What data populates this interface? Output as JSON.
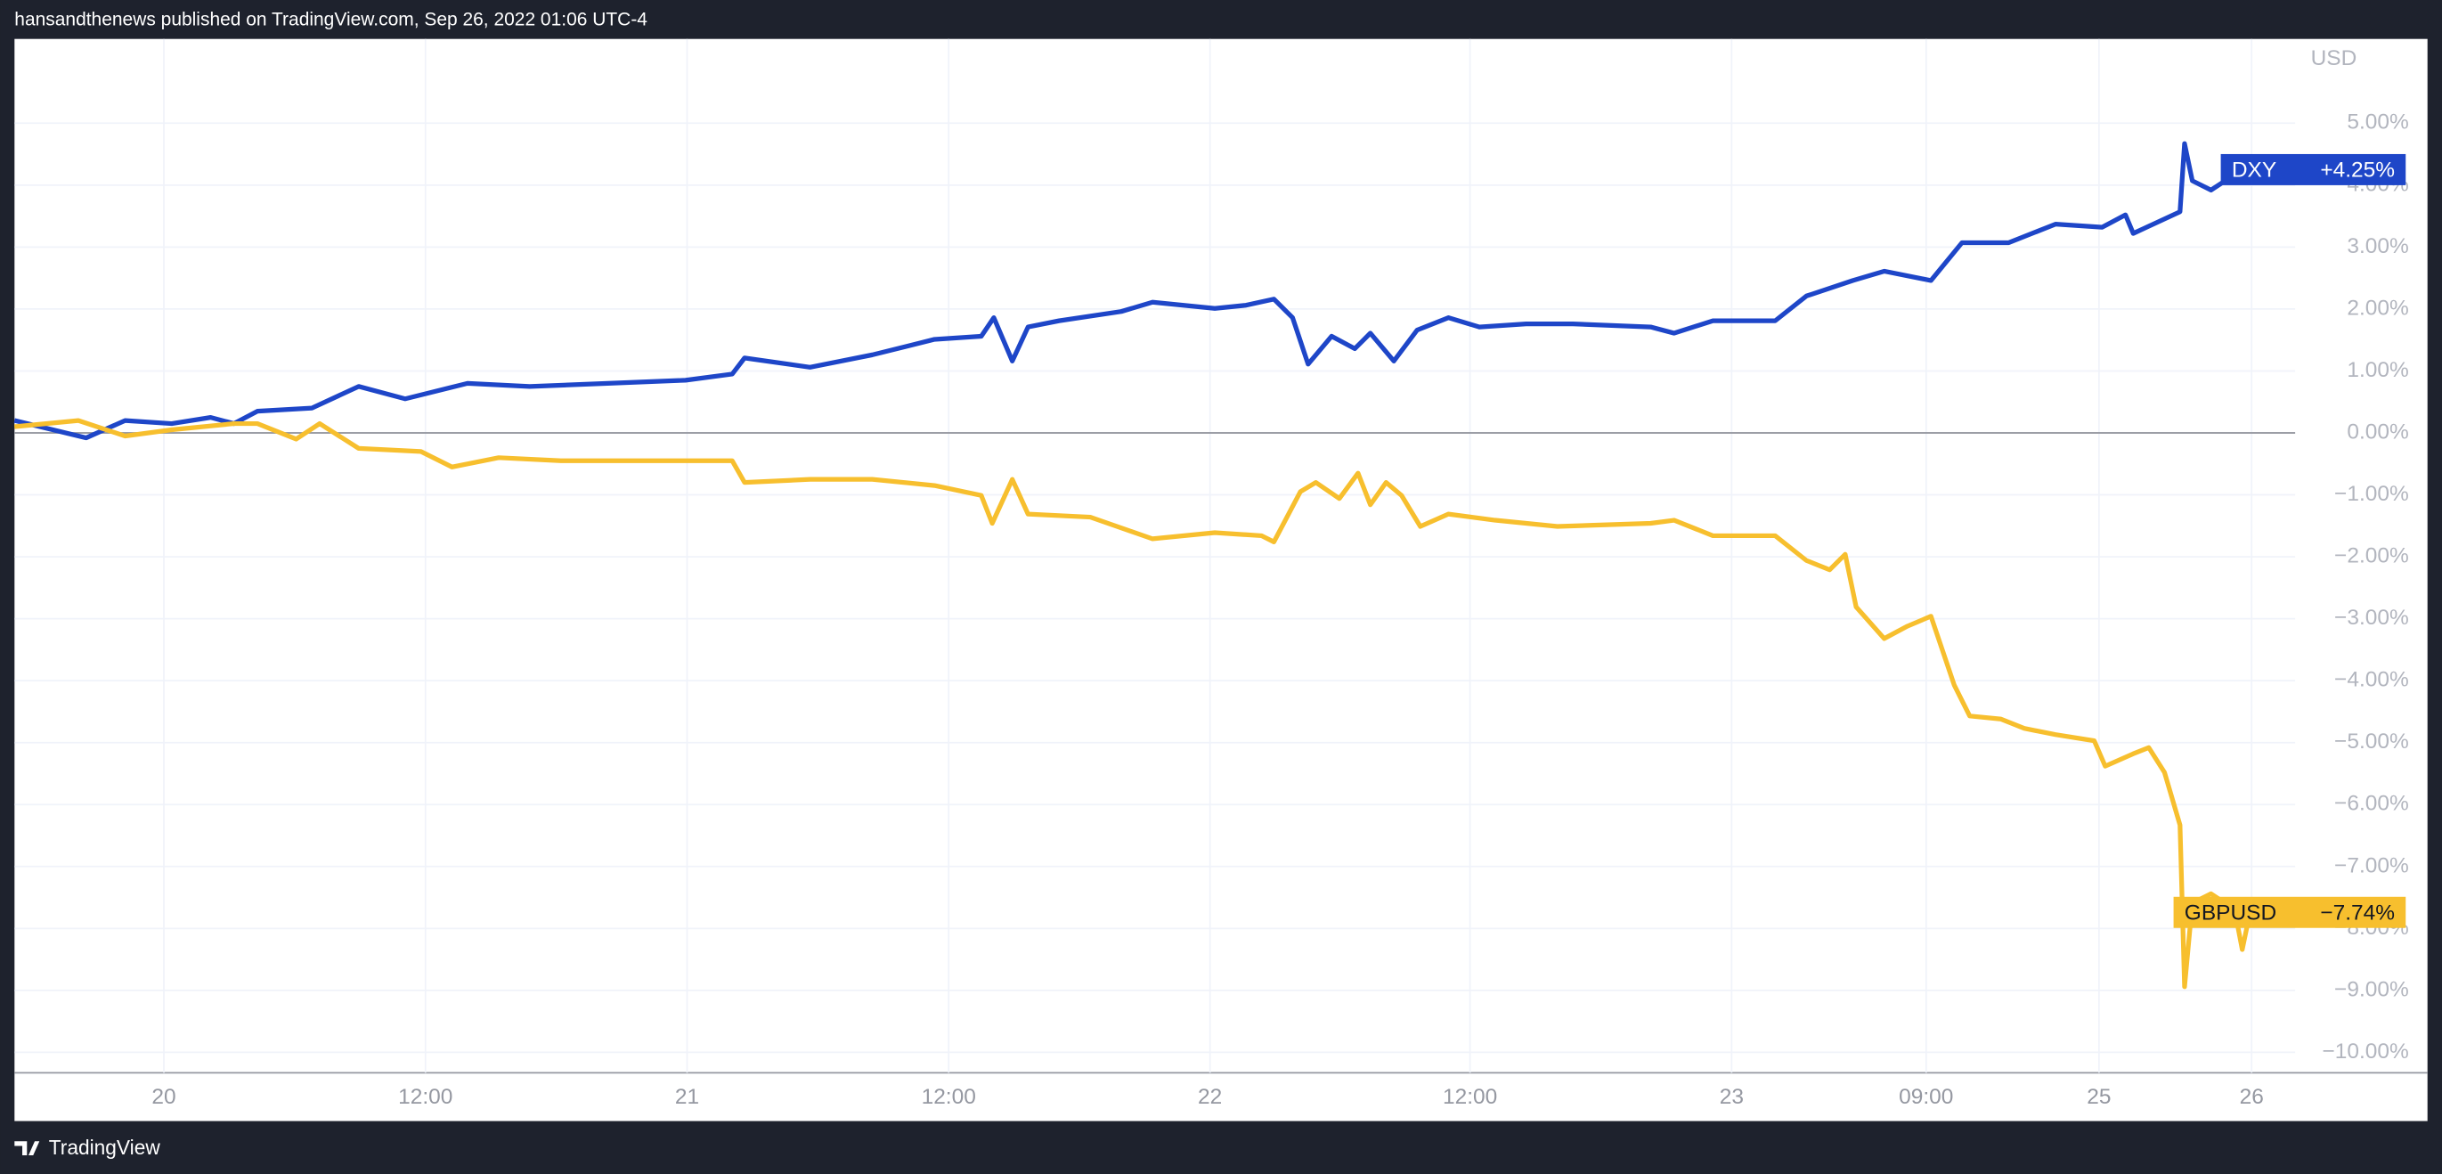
{
  "header": "hansandthenews published on TradingView.com, Sep 26, 2022 01:06 UTC-4",
  "footer": "TradingView",
  "chart_data": {
    "type": "line",
    "y_unit": "USD",
    "xlim": [
      0,
      100
    ],
    "ylim": [
      -10.33,
      6.36
    ],
    "xticks": [
      {
        "value": 6.55,
        "label": "20"
      },
      {
        "value": 18.02,
        "label": "12:00"
      },
      {
        "value": 29.49,
        "label": "21"
      },
      {
        "value": 40.96,
        "label": "12:00"
      },
      {
        "value": 52.42,
        "label": "22"
      },
      {
        "value": 63.82,
        "label": "12:00"
      },
      {
        "value": 75.29,
        "label": "23"
      },
      {
        "value": 83.82,
        "label": "09:00"
      },
      {
        "value": 91.4,
        "label": "25"
      },
      {
        "value": 98.09,
        "label": "26"
      }
    ],
    "yticks": [
      {
        "value": 5,
        "label": "5.00%"
      },
      {
        "value": 4,
        "label": "4.00%"
      },
      {
        "value": 3,
        "label": "3.00%"
      },
      {
        "value": 2,
        "label": "2.00%"
      },
      {
        "value": 1,
        "label": "1.00%"
      },
      {
        "value": 0,
        "label": "0.00%"
      },
      {
        "value": -1,
        "label": "−1.00%"
      },
      {
        "value": -2,
        "label": "−2.00%"
      },
      {
        "value": -3,
        "label": "−3.00%"
      },
      {
        "value": -4,
        "label": "−4.00%"
      },
      {
        "value": -5,
        "label": "−5.00%"
      },
      {
        "value": -6,
        "label": "−6.00%"
      },
      {
        "value": -7,
        "label": "−7.00%"
      },
      {
        "value": -8,
        "label": "−8.00%"
      },
      {
        "value": -9,
        "label": "−9.00%"
      },
      {
        "value": -10,
        "label": "−10.00%"
      }
    ],
    "grid": true,
    "series": [
      {
        "name": "DXY",
        "color": "#1e46c8",
        "text_color": "#ffffff",
        "last_label": "+4.25%",
        "x": [
          0.0,
          3.14,
          4.85,
          6.89,
          8.6,
          9.62,
          10.65,
          13.04,
          15.09,
          17.13,
          19.86,
          22.59,
          26.01,
          29.42,
          31.47,
          32.01,
          34.88,
          37.61,
          40.34,
          42.39,
          42.94,
          43.75,
          44.44,
          45.8,
          48.53,
          49.9,
          52.63,
          53.99,
          55.22,
          56.04,
          56.72,
          57.75,
          58.77,
          59.45,
          60.48,
          61.5,
          62.87,
          64.23,
          66.28,
          68.33,
          71.74,
          72.77,
          74.47,
          77.2,
          78.57,
          80.61,
          81.98,
          84.03,
          85.39,
          87.44,
          89.49,
          91.54,
          92.56,
          92.9,
          94.95,
          95.15,
          95.49,
          96.31,
          97.68
        ],
        "values": [
          0.2,
          -0.08,
          0.2,
          0.15,
          0.25,
          0.15,
          0.35,
          0.4,
          0.75,
          0.55,
          0.8,
          0.75,
          0.8,
          0.85,
          0.95,
          1.21,
          1.06,
          1.26,
          1.51,
          1.56,
          1.86,
          1.16,
          1.71,
          1.81,
          1.96,
          2.11,
          2.01,
          2.06,
          2.16,
          1.86,
          1.11,
          1.56,
          1.36,
          1.61,
          1.16,
          1.66,
          1.86,
          1.71,
          1.76,
          1.76,
          1.71,
          1.61,
          1.81,
          1.81,
          2.21,
          2.46,
          2.61,
          2.46,
          3.07,
          3.07,
          3.37,
          3.32,
          3.52,
          3.22,
          3.57,
          4.67,
          4.07,
          3.92,
          4.25
        ]
      },
      {
        "name": "GBPUSD",
        "color": "#f7bf2e",
        "text_color": "#131722",
        "last_label": "−7.74%",
        "x": [
          0.0,
          2.8,
          4.85,
          6.89,
          9.62,
          10.65,
          12.35,
          13.38,
          15.09,
          17.82,
          19.18,
          21.23,
          23.96,
          26.69,
          29.42,
          31.47,
          32.01,
          34.88,
          37.61,
          40.34,
          42.39,
          42.87,
          43.75,
          44.44,
          47.17,
          49.9,
          52.63,
          54.68,
          55.22,
          56.38,
          57.06,
          58.09,
          58.91,
          59.45,
          60.14,
          60.82,
          61.64,
          62.87,
          64.92,
          67.65,
          71.74,
          72.77,
          74.47,
          77.2,
          78.57,
          79.59,
          80.27,
          80.75,
          81.98,
          83.0,
          84.03,
          85.05,
          85.73,
          87.1,
          88.12,
          89.49,
          91.19,
          91.67,
          92.9,
          93.58,
          94.27,
          94.95,
          95.15,
          95.49,
          96.31,
          97.34,
          97.68,
          98.02
        ],
        "values": [
          0.1,
          0.2,
          -0.05,
          0.05,
          0.15,
          0.15,
          -0.1,
          0.15,
          -0.25,
          -0.3,
          -0.55,
          -0.4,
          -0.45,
          -0.45,
          -0.45,
          -0.45,
          -0.8,
          -0.75,
          -0.75,
          -0.85,
          -1.01,
          -1.46,
          -0.75,
          -1.31,
          -1.36,
          -1.71,
          -1.61,
          -1.66,
          -1.76,
          -0.95,
          -0.8,
          -1.06,
          -0.65,
          -1.16,
          -0.8,
          -1.01,
          -1.51,
          -1.31,
          -1.41,
          -1.51,
          -1.46,
          -1.41,
          -1.66,
          -1.66,
          -2.06,
          -2.21,
          -1.96,
          -2.81,
          -3.32,
          -3.12,
          -2.96,
          -4.07,
          -4.57,
          -4.62,
          -4.77,
          -4.87,
          -4.97,
          -5.38,
          -5.18,
          -5.08,
          -5.48,
          -6.33,
          -8.94,
          -7.59,
          -7.44,
          -7.69,
          -8.34,
          -7.74
        ]
      }
    ]
  }
}
